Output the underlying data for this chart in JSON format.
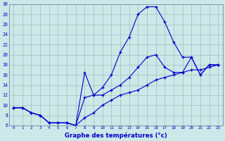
{
  "line_max_x": [
    0,
    1,
    2,
    3,
    4,
    5,
    6,
    7,
    8,
    9,
    10,
    11,
    12,
    13,
    14,
    15,
    16,
    17,
    18,
    19,
    20,
    21,
    22,
    23
  ],
  "line_max_y": [
    9.5,
    9.5,
    8.5,
    8.0,
    6.5,
    6.5,
    6.5,
    6.0,
    11.5,
    12.0,
    13.5,
    16.0,
    20.5,
    23.5,
    28.0,
    29.5,
    29.5,
    26.5,
    22.5,
    19.5,
    19.5,
    16.0,
    18.0,
    18.0
  ],
  "line_min_x": [
    0,
    1,
    2,
    3,
    4,
    5,
    6,
    7,
    8,
    9,
    10,
    11,
    12,
    13,
    14,
    15,
    16,
    17,
    18,
    19,
    20,
    21,
    22,
    23
  ],
  "line_min_y": [
    9.5,
    9.5,
    8.5,
    8.0,
    6.5,
    6.5,
    6.5,
    6.0,
    7.5,
    8.5,
    10.0,
    11.0,
    12.0,
    12.5,
    13.0,
    14.0,
    15.0,
    15.5,
    16.0,
    16.5,
    17.0,
    17.0,
    17.5,
    18.0
  ],
  "line_avg_x": [
    0,
    1,
    2,
    3,
    4,
    5,
    6,
    7,
    8,
    9,
    10,
    11,
    12,
    13,
    14,
    15,
    16,
    17,
    18,
    19,
    20,
    21,
    22,
    23
  ],
  "line_avg_y": [
    9.5,
    9.5,
    8.5,
    8.0,
    6.5,
    6.5,
    6.5,
    6.0,
    16.5,
    12.0,
    12.0,
    13.0,
    14.0,
    15.5,
    17.5,
    19.5,
    20.0,
    17.5,
    16.5,
    16.5,
    19.5,
    16.0,
    18.0,
    18.0
  ],
  "line_color": "#0000cc",
  "bg_color": "#cce8e8",
  "grid_color": "#aabbbb",
  "xlabel": "Graphe des températures (°c)",
  "ylim": [
    6,
    30
  ],
  "xlim": [
    -0.5,
    23.5
  ],
  "yticks": [
    6,
    8,
    10,
    12,
    14,
    16,
    18,
    20,
    22,
    24,
    26,
    28,
    30
  ],
  "xticks": [
    0,
    1,
    2,
    3,
    4,
    5,
    6,
    7,
    8,
    9,
    10,
    11,
    12,
    13,
    14,
    15,
    16,
    17,
    18,
    19,
    20,
    21,
    22,
    23
  ]
}
